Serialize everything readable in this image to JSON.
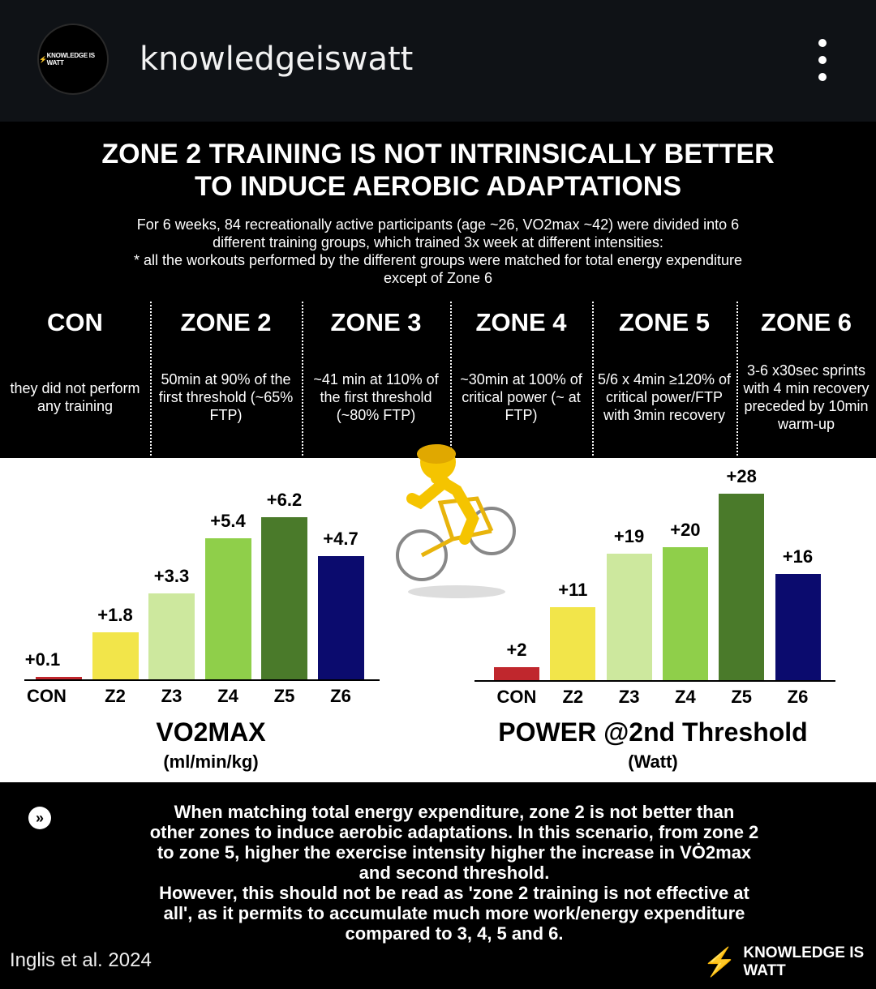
{
  "header": {
    "username": "knowledgeiswatt",
    "avatar_text": "KNOWLEDGE IS WATT",
    "more_icon": "more-vertical-icon"
  },
  "infographic": {
    "title_line1": "ZONE 2 TRAINING IS NOT INTRINSICALLY BETTER",
    "title_line2": "TO INDUCE AEROBIC ADAPTATIONS",
    "desc": [
      "For 6 weeks, 84 recreationally active participants (age ~26, VO2max ~42) were divided into 6",
      "different training groups, which trained 3x week at different intensities:",
      "* all the workouts performed by the different groups were matched for total energy expenditure",
      "except of Zone 6"
    ],
    "zones": [
      {
        "name": "CON",
        "desc": "they did not perform any training"
      },
      {
        "name": "ZONE 2",
        "desc": "50min at 90% of the first threshold (~65% FTP)"
      },
      {
        "name": "ZONE 3",
        "desc": "~41 min at 110% of the first threshold (~80% FTP)"
      },
      {
        "name": "ZONE 4",
        "desc": "~30min at 100% of critical power (~ at FTP)"
      },
      {
        "name": "ZONE 5",
        "desc": "5/6 x 4min ≥120% of critical power/FTP with 3min recovery"
      },
      {
        "name": "ZONE 6",
        "desc": "3-6 x30sec sprints with 4 min recovery preceded by 10min warm-up"
      }
    ]
  },
  "chart_data": [
    {
      "type": "bar",
      "title": "VO2MAX",
      "unit": "(ml/min/kg)",
      "categories": [
        "CON",
        "Z2",
        "Z3",
        "Z4",
        "Z5",
        "Z6"
      ],
      "values": [
        0.1,
        1.8,
        3.3,
        5.4,
        6.2,
        4.7
      ],
      "labels": [
        "+0.1",
        "+1.8",
        "+3.3",
        "+5.4",
        "+6.2",
        "+4.7"
      ],
      "colors": [
        "#c0272d",
        "#f2e54a",
        "#cde89e",
        "#8fcf4a",
        "#4a7a2a",
        "#0b0b6e"
      ],
      "ylim": [
        0,
        6.2
      ]
    },
    {
      "type": "bar",
      "title": "POWER @2nd Threshold",
      "unit": "(Watt)",
      "categories": [
        "CON",
        "Z2",
        "Z3",
        "Z4",
        "Z5",
        "Z6"
      ],
      "values": [
        2,
        11,
        19,
        20,
        28,
        16
      ],
      "labels": [
        "+2",
        "+11",
        "+19",
        "+20",
        "+28",
        "+16"
      ],
      "colors": [
        "#c0272d",
        "#f2e54a",
        "#cde89e",
        "#8fcf4a",
        "#4a7a2a",
        "#0b0b6e"
      ],
      "ylim": [
        0,
        28
      ]
    }
  ],
  "conclusion": {
    "icon": "double-chevron-right-icon",
    "lines": [
      "When matching total energy expenditure, zone 2 is not better than",
      "other zones to induce aerobic adaptations. In this scenario, from zone 2",
      "to zone 5, higher the exercise intensity higher the increase in VȮ2max",
      "and second threshold.",
      "However, this should not be read as 'zone 2 training is not effective at",
      "all', as it permits to accumulate much more work/energy expenditure",
      "compared to 3, 4, 5 and 6."
    ]
  },
  "footer": {
    "citation": "Inglis et al. 2024",
    "brand": "KNOWLEDGE IS WATT"
  }
}
